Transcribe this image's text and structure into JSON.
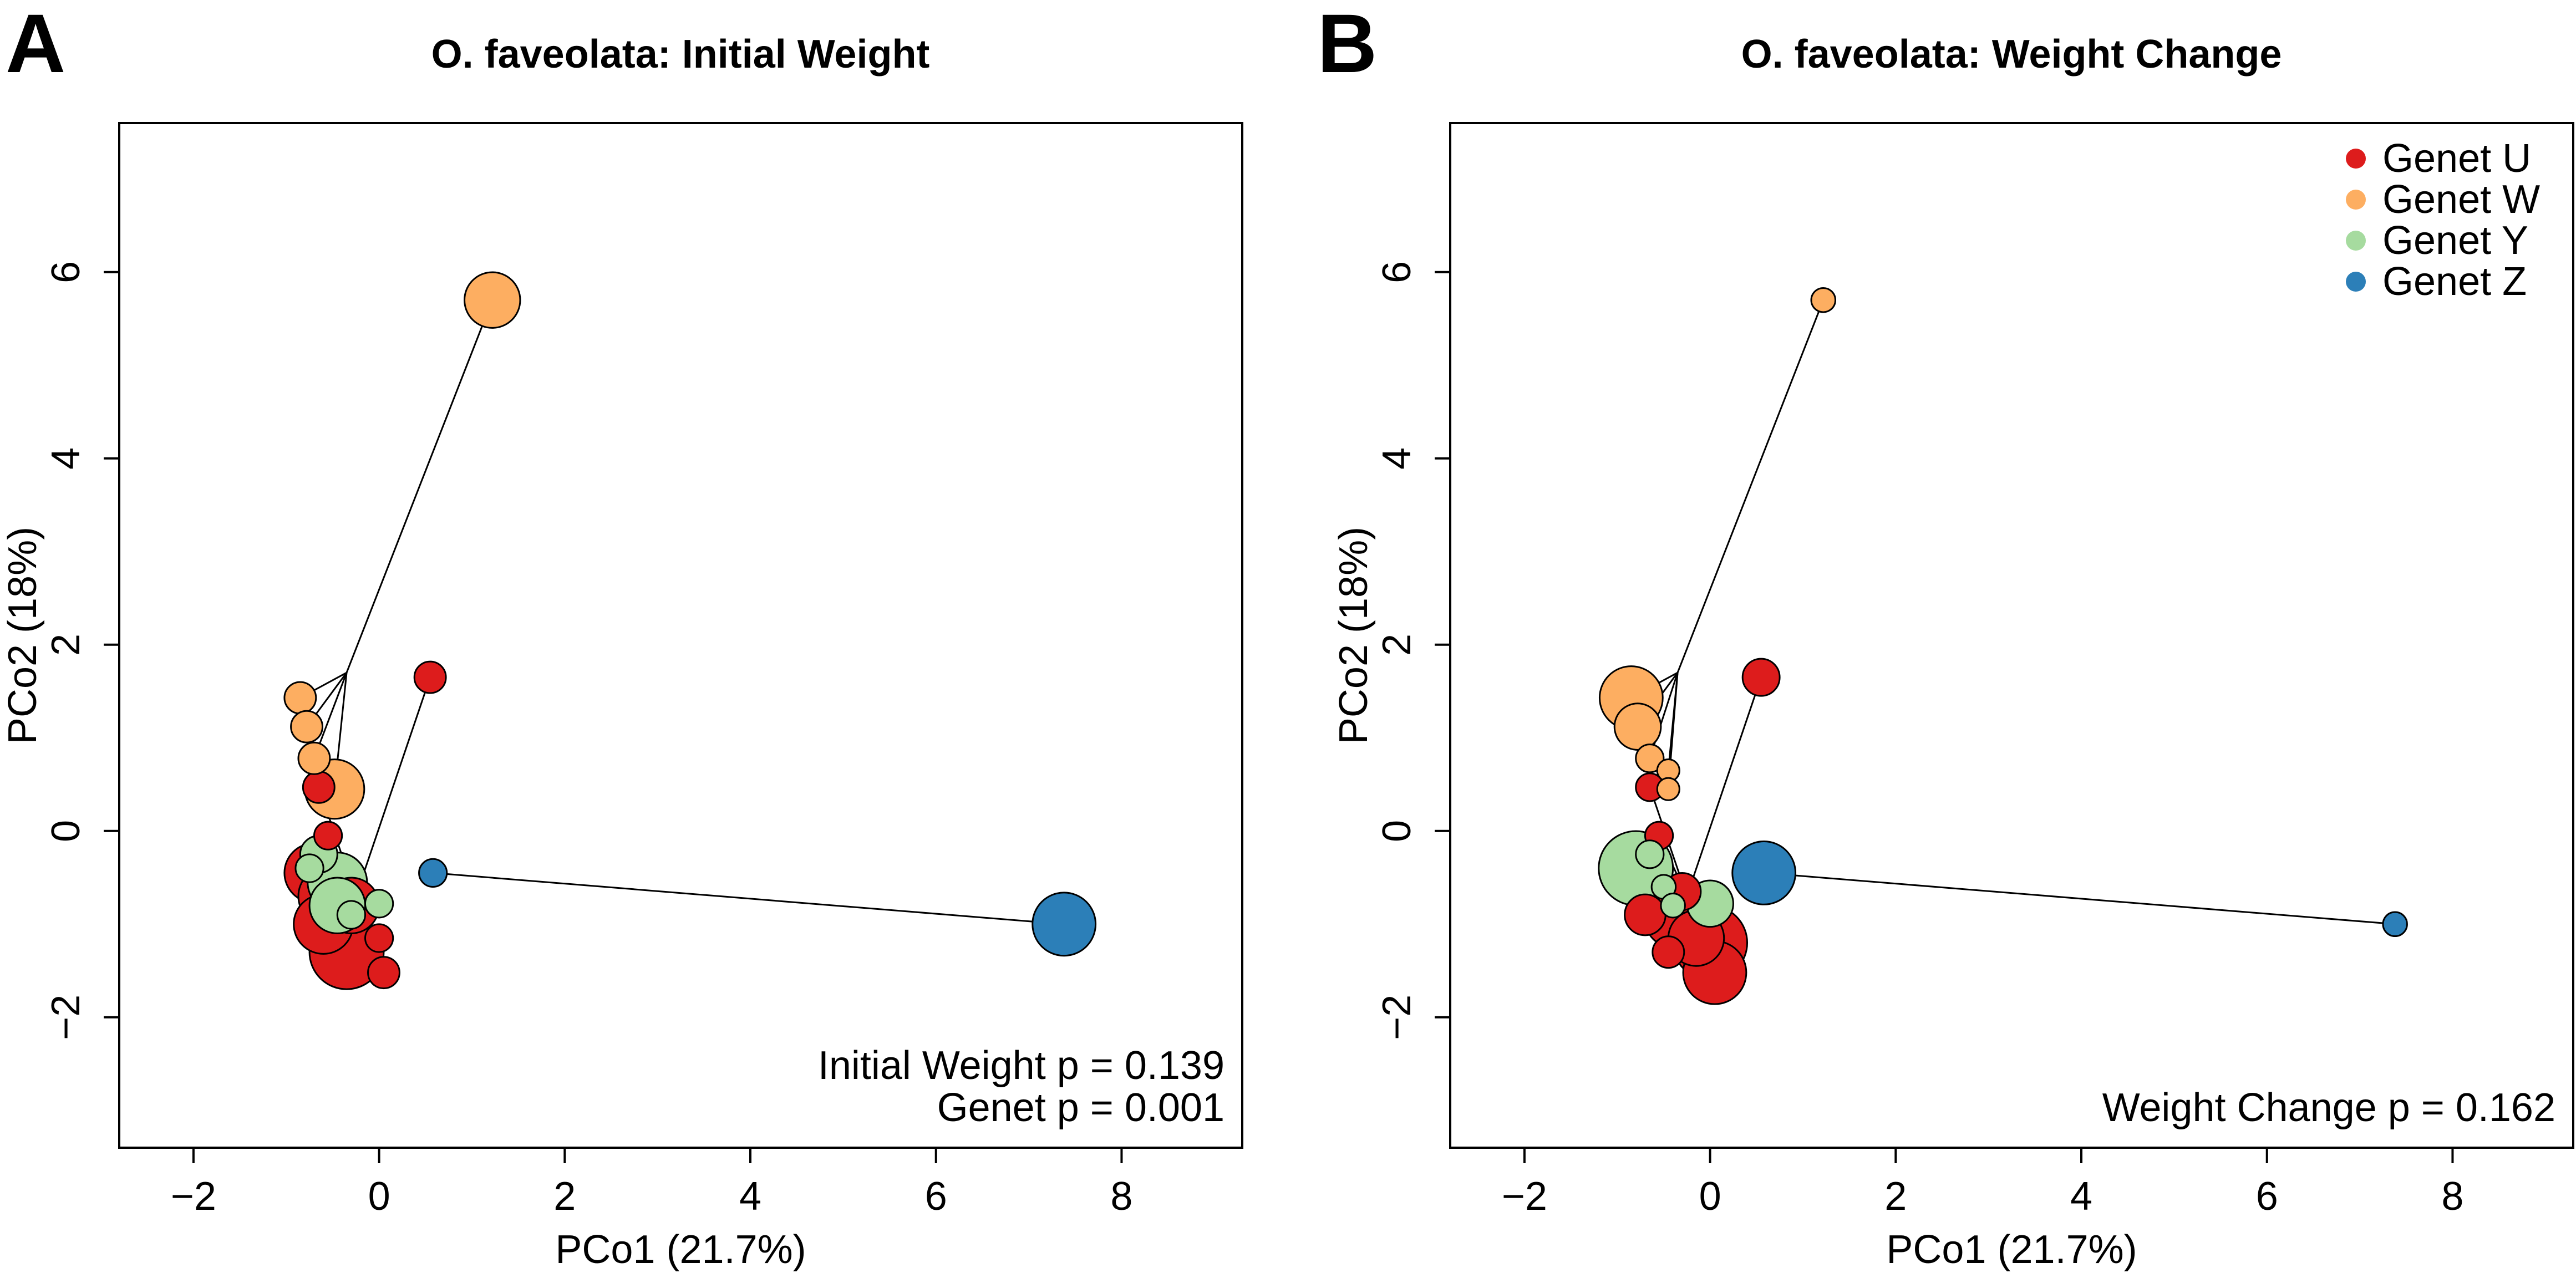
{
  "colors": {
    "genet_u": "#dd1c1c",
    "genet_w": "#fdae61",
    "genet_y": "#a6db9f",
    "genet_z": "#2c7fb8",
    "axis": "#000000",
    "background": "#ffffff"
  },
  "chart_data": [
    {
      "type": "scatter",
      "panel_letter": "A",
      "title": "O. faveolata: Initial Weight",
      "xlabel": "PCo1 (21.7%)",
      "ylabel": "PCo2 (18%)",
      "xlim": [
        -2.8,
        9.3
      ],
      "ylim": [
        -3.4,
        7.6
      ],
      "xticks": [
        -2,
        0,
        2,
        4,
        6,
        8
      ],
      "yticks": [
        -2,
        0,
        2,
        4,
        6
      ],
      "xtick_labels": [
        "−2",
        "0",
        "2",
        "4",
        "6",
        "8"
      ],
      "ytick_labels": [
        "−2",
        "0",
        "2",
        "4",
        "6"
      ],
      "grid": false,
      "legend": null,
      "size_variable": "Initial Weight",
      "stats": [
        "Initial Weight p =  0.139",
        "Genet p =  0.001"
      ],
      "centroids": [
        {
          "genet": "U",
          "x": -0.25,
          "y": -0.7
        },
        {
          "genet": "W",
          "x": -0.35,
          "y": 1.7
        },
        {
          "genet": "Y",
          "x": -0.45,
          "y": -0.7
        },
        {
          "genet": "Z",
          "x": 0.58,
          "y": -0.45
        }
      ],
      "series": [
        {
          "name": "Genet U",
          "color_key": "genet_u",
          "points": [
            {
              "x": 0.55,
              "y": 1.65,
              "r": 0.17
            },
            {
              "x": -0.65,
              "y": 0.47,
              "r": 0.17
            },
            {
              "x": -0.55,
              "y": -0.05,
              "r": 0.15
            },
            {
              "x": -0.7,
              "y": -0.45,
              "r": 0.32
            },
            {
              "x": -0.55,
              "y": -0.7,
              "r": 0.32
            },
            {
              "x": -0.3,
              "y": -0.8,
              "r": 0.3
            },
            {
              "x": -0.6,
              "y": -1.0,
              "r": 0.32
            },
            {
              "x": -0.35,
              "y": -1.3,
              "r": 0.4
            },
            {
              "x": 0.0,
              "y": -1.15,
              "r": 0.15
            },
            {
              "x": 0.05,
              "y": -1.52,
              "r": 0.17
            }
          ]
        },
        {
          "name": "Genet W",
          "color_key": "genet_w",
          "points": [
            {
              "x": 1.22,
              "y": 5.7,
              "r": 0.3
            },
            {
              "x": -0.85,
              "y": 1.43,
              "r": 0.17
            },
            {
              "x": -0.78,
              "y": 1.12,
              "r": 0.17
            },
            {
              "x": -0.7,
              "y": 0.78,
              "r": 0.17
            },
            {
              "x": -0.48,
              "y": 0.45,
              "r": 0.32
            }
          ]
        },
        {
          "name": "Genet Y",
          "color_key": "genet_y",
          "points": [
            {
              "x": -0.65,
              "y": -0.25,
              "r": 0.2
            },
            {
              "x": -0.75,
              "y": -0.4,
              "r": 0.15
            },
            {
              "x": -0.45,
              "y": -0.55,
              "r": 0.32
            },
            {
              "x": -0.45,
              "y": -0.8,
              "r": 0.3
            },
            {
              "x": -0.3,
              "y": -0.9,
              "r": 0.15
            },
            {
              "x": 0.0,
              "y": -0.78,
              "r": 0.15
            }
          ]
        },
        {
          "name": "Genet Z",
          "color_key": "genet_z",
          "points": [
            {
              "x": 0.58,
              "y": -0.45,
              "r": 0.15
            },
            {
              "x": 7.38,
              "y": -1.0,
              "r": 0.34
            }
          ]
        }
      ]
    },
    {
      "type": "scatter",
      "panel_letter": "B",
      "title": "O. faveolata: Weight Change",
      "xlabel": "PCo1 (21.7%)",
      "ylabel": "PCo2 (18%)",
      "xlim": [
        -2.8,
        9.3
      ],
      "ylim": [
        -3.4,
        7.6
      ],
      "xticks": [
        -2,
        0,
        2,
        4,
        6,
        8
      ],
      "yticks": [
        -2,
        0,
        2,
        4,
        6
      ],
      "xtick_labels": [
        "−2",
        "0",
        "2",
        "4",
        "6",
        "8"
      ],
      "ytick_labels": [
        "−2",
        "0",
        "2",
        "4",
        "6"
      ],
      "grid": false,
      "legend": "top-right",
      "legend_entries": [
        {
          "label": "Genet U",
          "color_key": "genet_u"
        },
        {
          "label": "Genet W",
          "color_key": "genet_w"
        },
        {
          "label": "Genet Y",
          "color_key": "genet_y"
        },
        {
          "label": "Genet Z",
          "color_key": "genet_z"
        }
      ],
      "size_variable": "Weight Change",
      "stats": [
        "Weight Change p =  0.162"
      ],
      "centroids": [
        {
          "genet": "U",
          "x": -0.25,
          "y": -0.7
        },
        {
          "genet": "W",
          "x": -0.35,
          "y": 1.7
        },
        {
          "genet": "Y",
          "x": -0.45,
          "y": -0.7
        },
        {
          "genet": "Z",
          "x": 0.58,
          "y": -0.45
        }
      ],
      "series": [
        {
          "name": "Genet U",
          "color_key": "genet_u",
          "points": [
            {
              "x": 0.55,
              "y": 1.65,
              "r": 0.2
            },
            {
              "x": -0.65,
              "y": 0.47,
              "r": 0.15
            },
            {
              "x": -0.55,
              "y": -0.05,
              "r": 0.15
            },
            {
              "x": -0.7,
              "y": -0.9,
              "r": 0.22
            },
            {
              "x": -0.3,
              "y": -0.65,
              "r": 0.2
            },
            {
              "x": -0.4,
              "y": -0.95,
              "r": 0.3
            },
            {
              "x": -0.45,
              "y": -1.3,
              "r": 0.17
            },
            {
              "x": -0.15,
              "y": -1.15,
              "r": 0.3
            },
            {
              "x": 0.0,
              "y": -1.2,
              "r": 0.4
            },
            {
              "x": 0.05,
              "y": -1.52,
              "r": 0.34
            }
          ]
        },
        {
          "name": "Genet W",
          "color_key": "genet_w",
          "points": [
            {
              "x": 1.22,
              "y": 5.7,
              "r": 0.13
            },
            {
              "x": -0.85,
              "y": 1.43,
              "r": 0.34
            },
            {
              "x": -0.78,
              "y": 1.12,
              "r": 0.25
            },
            {
              "x": -0.65,
              "y": 0.78,
              "r": 0.15
            },
            {
              "x": -0.45,
              "y": 0.65,
              "r": 0.12
            },
            {
              "x": -0.45,
              "y": 0.45,
              "r": 0.12
            }
          ]
        },
        {
          "name": "Genet Y",
          "color_key": "genet_y",
          "points": [
            {
              "x": -0.8,
              "y": -0.4,
              "r": 0.4
            },
            {
              "x": -0.65,
              "y": -0.25,
              "r": 0.15
            },
            {
              "x": -0.5,
              "y": -0.6,
              "r": 0.13
            },
            {
              "x": -0.4,
              "y": -0.8,
              "r": 0.13
            },
            {
              "x": 0.0,
              "y": -0.78,
              "r": 0.25
            }
          ]
        },
        {
          "name": "Genet Z",
          "color_key": "genet_z",
          "points": [
            {
              "x": 0.58,
              "y": -0.45,
              "r": 0.34
            },
            {
              "x": 7.38,
              "y": -1.0,
              "r": 0.13
            }
          ]
        }
      ]
    }
  ]
}
